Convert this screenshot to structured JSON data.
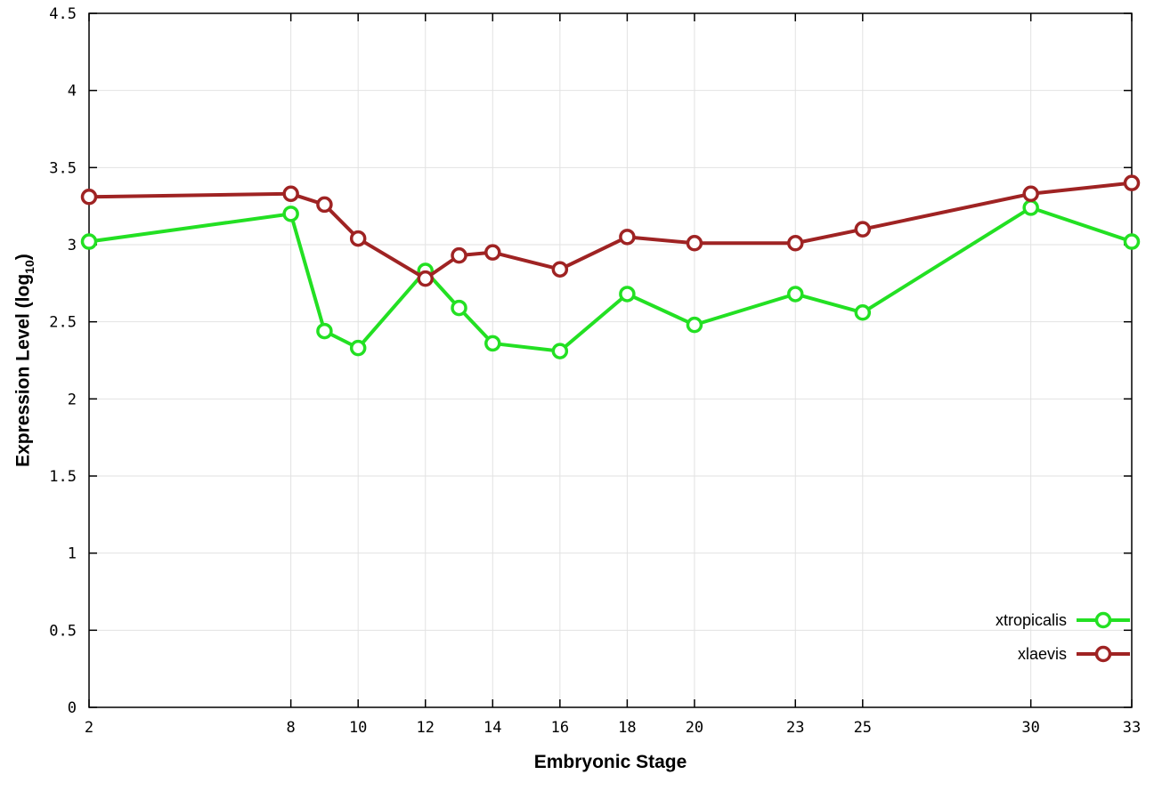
{
  "chart_data": {
    "type": "line",
    "x": [
      2,
      8,
      9,
      10,
      12,
      13,
      14,
      16,
      18,
      20,
      23,
      25,
      30,
      33
    ],
    "series": [
      {
        "name": "xtropicalis",
        "color": "#23e023",
        "values": [
          3.02,
          3.2,
          2.44,
          2.33,
          2.83,
          2.59,
          2.36,
          2.31,
          2.68,
          2.48,
          2.68,
          2.56,
          3.24,
          3.02
        ]
      },
      {
        "name": "xlaevis",
        "color": "#9f2323",
        "values": [
          3.31,
          3.33,
          3.26,
          3.04,
          2.78,
          2.93,
          2.95,
          2.84,
          3.05,
          3.01,
          3.01,
          3.1,
          3.33,
          3.4
        ]
      }
    ],
    "title": "",
    "xlabel": "Embryonic Stage",
    "ylabel": "Expression Level (log10)",
    "ylabel_parts": {
      "prefix": "Expression Level (log",
      "sub": "10",
      "suffix": ")"
    },
    "xlim": [
      2,
      33
    ],
    "ylim": [
      0,
      4.5
    ],
    "xticks": [
      2,
      8,
      10,
      12,
      14,
      16,
      18,
      20,
      23,
      25,
      30,
      33
    ],
    "yticks": [
      0,
      0.5,
      1,
      1.5,
      2,
      2.5,
      3,
      3.5,
      4,
      4.5
    ],
    "ytick_labels": [
      "0",
      "0.5",
      "1",
      "1.5",
      "2",
      "2.5",
      "3",
      "3.5",
      "4",
      "4.5"
    ],
    "grid": true,
    "grid_color": "#e2e2e2",
    "axis_color": "#000000",
    "background": "#ffffff",
    "legend_position": "bottom-right",
    "marker": "open-circle"
  }
}
